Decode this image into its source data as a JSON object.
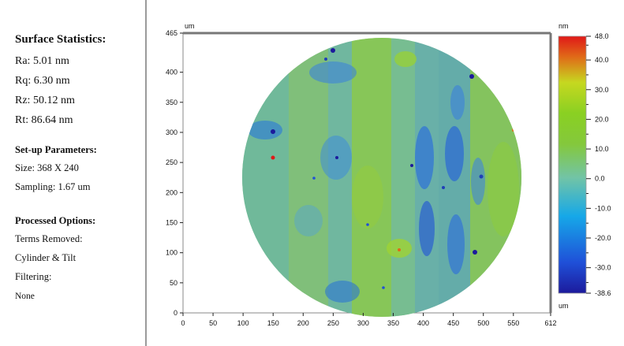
{
  "stats": {
    "title": "Surface Statistics:",
    "ra": "Ra:  5.01 nm",
    "rq": "Rq:  6.30 nm",
    "rz": "Rz:  50.12 nm",
    "rt": "Rt:  86.64 nm"
  },
  "setup": {
    "title": "Set-up Parameters:",
    "size": "Size: 368 X 240",
    "sampling": "Sampling:  1.67 um"
  },
  "processed": {
    "title": "Processed Options:",
    "terms_label": "Terms Removed:",
    "terms_value": "Cylinder & Tilt",
    "filtering_label": "Filtering:",
    "filtering_value": "None"
  },
  "chart_data": {
    "type": "heatmap",
    "title": "",
    "x_unit": "um",
    "y_unit": "um",
    "z_unit": "nm",
    "xlim": [
      0,
      612
    ],
    "ylim": [
      0,
      465
    ],
    "x_ticks": [
      "0",
      "50",
      "100",
      "150",
      "200",
      "250",
      "300",
      "350",
      "400",
      "450",
      "500",
      "550",
      "612"
    ],
    "x_tick_values": [
      0,
      50,
      100,
      150,
      200,
      250,
      300,
      350,
      400,
      450,
      500,
      550,
      612
    ],
    "y_ticks": [
      "0",
      "50",
      "100",
      "150",
      "200",
      "250",
      "300",
      "350",
      "400",
      "465"
    ],
    "y_tick_values": [
      0,
      50,
      100,
      150,
      200,
      250,
      300,
      350,
      400,
      465
    ],
    "colorbar_min_label": "-38.6",
    "colorbar_max_label": "48.0",
    "colorbar_ticks": [
      "40.0",
      "30.0",
      "20.0",
      "10.0",
      "0.0",
      "-10.0",
      "-20.0",
      "-30.0"
    ],
    "colorbar_tick_values": [
      40,
      30,
      20,
      10,
      0,
      -10,
      -20,
      -30
    ],
    "zlim": [
      -38.6,
      48.0
    ],
    "colormap": [
      "#1c1a9c",
      "#1f50d8",
      "#16a8e8",
      "#72c4a6",
      "#84c83c",
      "#8ad022",
      "#c6d820",
      "#e06a18",
      "#e01818"
    ],
    "background_color": "#7fbf7a"
  }
}
